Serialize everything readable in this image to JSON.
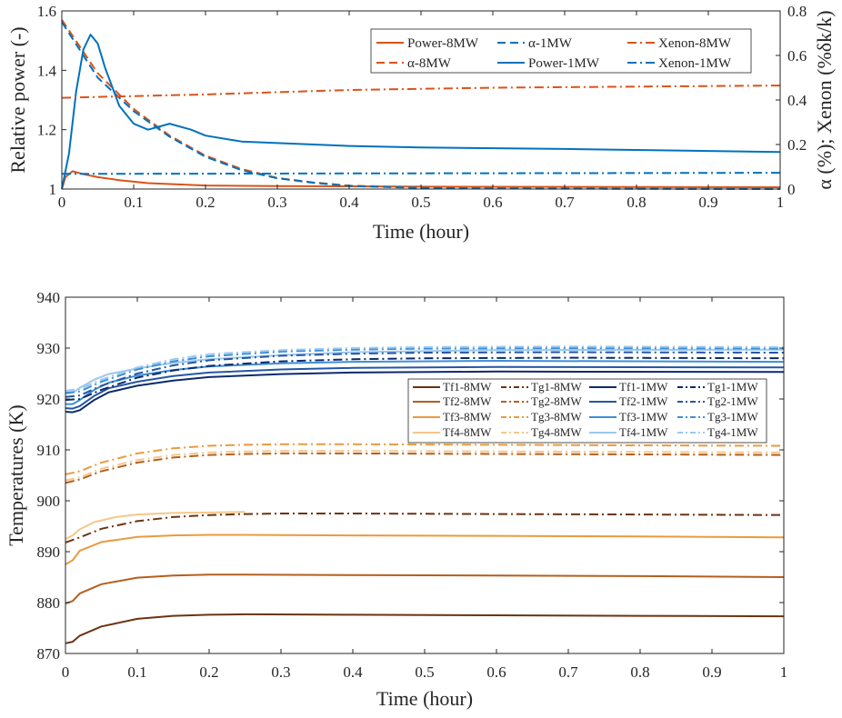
{
  "chart_data": [
    {
      "type": "line",
      "xlabel": "Time (hour)",
      "ylabel": "Relative power (-)",
      "y2label": "α (%); Xenon (%δk/k)",
      "xlim": [
        0,
        1
      ],
      "ylim": [
        1,
        1.6
      ],
      "y2lim": [
        0,
        0.8
      ],
      "xticks": [
        "0",
        "0.1",
        "0.2",
        "0.3",
        "0.4",
        "0.5",
        "0.6",
        "0.7",
        "0.8",
        "0.9",
        "1"
      ],
      "yticks": [
        "1",
        "1.2",
        "1.4",
        "1.6"
      ],
      "y2ticks": [
        "0",
        "0.2",
        "0.4",
        "0.6",
        "0.8"
      ],
      "legend_position": "top-right",
      "series": [
        {
          "name": "Power-8MW",
          "axis": "left",
          "color": "#d95319",
          "dash": "solid",
          "x": [
            0,
            0.005,
            0.015,
            0.03,
            0.05,
            0.08,
            0.12,
            0.2,
            0.3,
            0.5,
            1.0
          ],
          "y": [
            1.0,
            1.04,
            1.06,
            1.05,
            1.04,
            1.03,
            1.02,
            1.012,
            1.01,
            1.008,
            1.006
          ]
        },
        {
          "name": "α-8MW",
          "axis": "right",
          "color": "#d95319",
          "dash": "dashed",
          "x": [
            0,
            0.05,
            0.1,
            0.15,
            0.2,
            0.25,
            0.3,
            0.35,
            0.4,
            0.5,
            0.6,
            1.0
          ],
          "y": [
            0.76,
            0.52,
            0.36,
            0.24,
            0.15,
            0.09,
            0.05,
            0.03,
            0.015,
            0.006,
            0.003,
            0.0
          ]
        },
        {
          "name": "α-1MW",
          "axis": "right",
          "color": "#0072bd",
          "dash": "dashed",
          "x": [
            0,
            0.05,
            0.1,
            0.15,
            0.2,
            0.25,
            0.3,
            0.35,
            0.4,
            0.5,
            0.6,
            1.0
          ],
          "y": [
            0.75,
            0.5,
            0.35,
            0.235,
            0.145,
            0.085,
            0.048,
            0.028,
            0.014,
            0.005,
            0.002,
            0.0
          ]
        },
        {
          "name": "Power-1MW",
          "axis": "left",
          "color": "#0072bd",
          "dash": "solid",
          "x": [
            0,
            0.01,
            0.02,
            0.03,
            0.04,
            0.05,
            0.06,
            0.08,
            0.1,
            0.12,
            0.15,
            0.18,
            0.2,
            0.25,
            0.3,
            0.4,
            0.5,
            0.7,
            1.0
          ],
          "y": [
            1.0,
            1.12,
            1.33,
            1.47,
            1.52,
            1.49,
            1.41,
            1.28,
            1.22,
            1.2,
            1.22,
            1.2,
            1.18,
            1.16,
            1.155,
            1.145,
            1.14,
            1.135,
            1.125
          ]
        },
        {
          "name": "Xenon-8MW",
          "axis": "right",
          "color": "#d95319",
          "dash": "dashdot",
          "x": [
            0,
            0.2,
            0.4,
            0.6,
            0.8,
            1.0
          ],
          "y": [
            0.41,
            0.425,
            0.445,
            0.455,
            0.46,
            0.465
          ]
        },
        {
          "name": "Xenon-1MW",
          "axis": "right",
          "color": "#0072bd",
          "dash": "dashdot",
          "x": [
            0,
            0.2,
            0.4,
            0.6,
            0.8,
            1.0
          ],
          "y": [
            0.068,
            0.069,
            0.07,
            0.071,
            0.072,
            0.073
          ]
        }
      ]
    },
    {
      "type": "line",
      "xlabel": "Time (hour)",
      "ylabel": "Temperatures (K)",
      "xlim": [
        0,
        1
      ],
      "ylim": [
        870,
        940
      ],
      "xticks": [
        "0",
        "0.1",
        "0.2",
        "0.3",
        "0.4",
        "0.5",
        "0.6",
        "0.7",
        "0.8",
        "0.9",
        "1"
      ],
      "yticks": [
        "870",
        "880",
        "890",
        "900",
        "910",
        "920",
        "930",
        "940"
      ],
      "legend_position": "upper-right",
      "legend_columns": 4,
      "series": [
        {
          "name": "Tf1-8MW",
          "color": "#6b3410",
          "dash": "solid",
          "x": [
            0,
            0.01,
            0.02,
            0.05,
            0.1,
            0.15,
            0.2,
            0.25,
            0.4,
            0.6,
            0.8,
            1.0
          ],
          "y": [
            872,
            872.3,
            873.5,
            875.3,
            876.8,
            877.4,
            877.6,
            877.7,
            877.6,
            877.5,
            877.4,
            877.3
          ]
        },
        {
          "name": "Tf2-8MW",
          "color": "#b45f1e",
          "dash": "solid",
          "x": [
            0,
            0.01,
            0.02,
            0.05,
            0.1,
            0.15,
            0.2,
            0.25,
            0.4,
            0.6,
            0.8,
            1.0
          ],
          "y": [
            879.8,
            880.3,
            881.8,
            883.6,
            884.9,
            885.3,
            885.5,
            885.5,
            885.4,
            885.3,
            885.2,
            885.0
          ]
        },
        {
          "name": "Tf3-8MW",
          "color": "#eb9a3e",
          "dash": "solid",
          "x": [
            0,
            0.01,
            0.02,
            0.05,
            0.1,
            0.15,
            0.2,
            0.25,
            0.4,
            0.6,
            0.8,
            1.0
          ],
          "y": [
            887.5,
            888.3,
            890.2,
            891.9,
            892.9,
            893.2,
            893.3,
            893.3,
            893.2,
            893.1,
            893.0,
            892.8
          ]
        },
        {
          "name": "Tf4-8MW",
          "color": "#f5c88a",
          "dash": "solid",
          "x": [
            0,
            0.01,
            0.02,
            0.04,
            0.07,
            0.1,
            0.15,
            0.2,
            0.25
          ],
          "y": [
            892.5,
            893.2,
            894.4,
            895.8,
            896.8,
            897.3,
            897.6,
            897.7,
            897.8
          ]
        },
        {
          "name": "Tg1-8MW",
          "color": "#6b3410",
          "dash": "dashdot",
          "x": [
            0,
            0.02,
            0.05,
            0.1,
            0.15,
            0.2,
            0.25,
            0.3,
            0.4,
            0.6,
            0.8,
            1.0
          ],
          "y": [
            891.8,
            892.8,
            894.5,
            896.0,
            896.8,
            897.2,
            897.4,
            897.5,
            897.5,
            897.4,
            897.3,
            897.2
          ]
        },
        {
          "name": "Tg2-8MW",
          "color": "#b45f1e",
          "dash": "dashdot",
          "x": [
            0,
            0.02,
            0.05,
            0.1,
            0.15,
            0.2,
            0.25,
            0.3,
            0.4,
            0.6,
            0.8,
            1.0
          ],
          "y": [
            903.5,
            904.2,
            905.8,
            907.5,
            908.5,
            909.0,
            909.2,
            909.3,
            909.3,
            909.2,
            909.1,
            909.0
          ]
        },
        {
          "name": "Tg3-8MW",
          "color": "#eb9a3e",
          "dash": "dashdot",
          "x": [
            0,
            0.02,
            0.05,
            0.1,
            0.15,
            0.2,
            0.25,
            0.3,
            0.4,
            0.6,
            0.8,
            1.0
          ],
          "y": [
            905.2,
            905.8,
            907.5,
            909.3,
            910.3,
            910.8,
            911.0,
            911.1,
            911.1,
            911.0,
            910.9,
            910.8
          ]
        },
        {
          "name": "Tg4-8MW",
          "color": "#f5c88a",
          "dash": "dashdot",
          "x": [
            0,
            0.02,
            0.05,
            0.1,
            0.15,
            0.2,
            0.25,
            0.3,
            0.4,
            0.6,
            0.8,
            1.0
          ],
          "y": [
            904.0,
            904.6,
            906.3,
            908.0,
            909.0,
            909.5,
            909.7,
            909.8,
            909.8,
            909.7,
            909.6,
            909.5
          ]
        },
        {
          "name": "Tf1-1MW",
          "color": "#0d2a6b",
          "dash": "solid",
          "x": [
            0,
            0.01,
            0.02,
            0.04,
            0.06,
            0.1,
            0.15,
            0.2,
            0.3,
            0.4,
            0.6,
            1.0
          ],
          "y": [
            917.5,
            917.4,
            917.8,
            919.8,
            921.3,
            922.6,
            923.6,
            924.3,
            924.9,
            925.2,
            925.4,
            925.3
          ]
        },
        {
          "name": "Tf2-1MW",
          "color": "#2456a4",
          "dash": "solid",
          "x": [
            0,
            0.01,
            0.02,
            0.04,
            0.06,
            0.1,
            0.15,
            0.2,
            0.3,
            0.4,
            0.6,
            1.0
          ],
          "y": [
            918.2,
            918.1,
            918.6,
            920.6,
            922.1,
            923.4,
            924.5,
            925.2,
            925.8,
            926.1,
            926.3,
            926.2
          ]
        },
        {
          "name": "Tf3-1MW",
          "color": "#3d8fd8",
          "dash": "solid",
          "x": [
            0,
            0.01,
            0.02,
            0.04,
            0.06,
            0.1,
            0.15,
            0.2,
            0.3,
            0.4,
            0.6,
            1.0
          ],
          "y": [
            919.0,
            919.0,
            919.8,
            921.8,
            923.2,
            924.6,
            925.7,
            926.4,
            927.0,
            927.3,
            927.5,
            927.3
          ]
        },
        {
          "name": "Tf4-1MW",
          "color": "#9cc8ee",
          "dash": "solid",
          "x": [
            0,
            0.01,
            0.02,
            0.04,
            0.06,
            0.1,
            0.15,
            0.2,
            0.3,
            0.4,
            0.6,
            1.0
          ],
          "y": [
            921.0,
            921.2,
            922.2,
            923.8,
            924.9,
            926.0,
            927.1,
            927.8,
            928.6,
            929.2,
            929.6,
            929.7
          ]
        },
        {
          "name": "Tg1-1MW",
          "color": "#0d2a6b",
          "dash": "dashdot",
          "x": [
            0,
            0.02,
            0.05,
            0.1,
            0.15,
            0.2,
            0.3,
            0.4,
            0.5,
            0.7,
            1.0
          ],
          "y": [
            919.8,
            920.0,
            921.8,
            924.2,
            925.6,
            926.5,
            927.4,
            927.8,
            928.0,
            928.1,
            928.0
          ]
        },
        {
          "name": "Tg2-1MW",
          "color": "#2456a4",
          "dash": "dashdot",
          "x": [
            0,
            0.02,
            0.05,
            0.1,
            0.15,
            0.2,
            0.3,
            0.4,
            0.5,
            0.7,
            1.0
          ],
          "y": [
            920.4,
            920.7,
            922.6,
            925.0,
            926.6,
            927.6,
            928.5,
            928.9,
            929.1,
            929.2,
            929.1
          ]
        },
        {
          "name": "Tg3-1MW",
          "color": "#3d8fd8",
          "dash": "dashdot",
          "x": [
            0,
            0.02,
            0.05,
            0.1,
            0.15,
            0.2,
            0.3,
            0.4,
            0.5,
            0.7,
            1.0
          ],
          "y": [
            921.2,
            921.5,
            923.4,
            925.8,
            927.4,
            928.4,
            929.3,
            929.7,
            929.9,
            930.0,
            929.9
          ]
        },
        {
          "name": "Tg4-1MW",
          "color": "#9cc8ee",
          "dash": "dashdot",
          "x": [
            0,
            0.02,
            0.05,
            0.1,
            0.15,
            0.2,
            0.3,
            0.4,
            0.5,
            0.7,
            1.0
          ],
          "y": [
            921.6,
            922.0,
            923.8,
            926.2,
            927.8,
            928.8,
            929.6,
            930.0,
            930.2,
            930.3,
            930.2
          ]
        }
      ]
    }
  ]
}
